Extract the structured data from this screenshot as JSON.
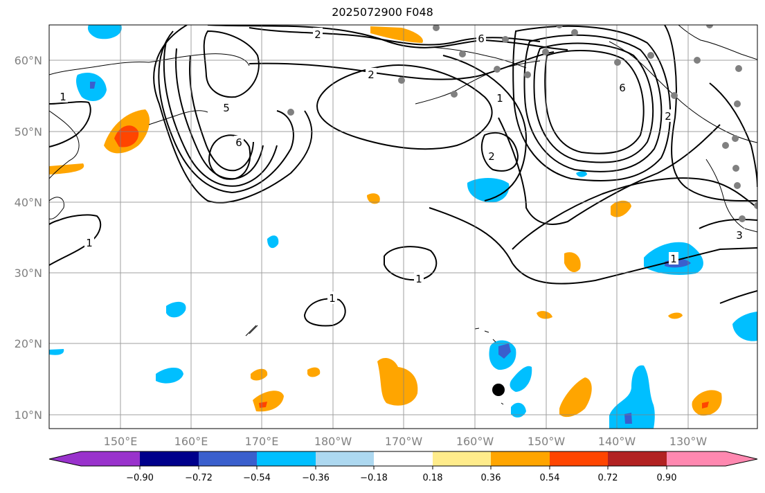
{
  "map": {
    "title": "2025072900 F048",
    "lat_labels": [
      "60°N",
      "50°N",
      "40°N",
      "30°N",
      "20°N",
      "10°N"
    ],
    "lon_labels": [
      "150°E",
      "160°E",
      "170°E",
      "180°W",
      "170°W",
      "160°W",
      "150°W",
      "140°W",
      "130°W"
    ],
    "contour_labels": [
      "2",
      "6",
      "5",
      "2",
      "2",
      "1",
      "6",
      "1",
      "1",
      "1",
      "1",
      "6",
      "3",
      "1",
      "2"
    ],
    "colorbar": {
      "tick_labels": [
        "−0.90",
        "−0.72",
        "−0.54",
        "−0.36",
        "−0.18",
        "0.18",
        "0.36",
        "0.54",
        "0.72",
        "0.90"
      ],
      "colors": [
        "#9932cc",
        "#00008b",
        "#3a5fcd",
        "#00bfff",
        "#add8f0",
        "#ffffff",
        "#ffec8b",
        "#ffa500",
        "#ff4500",
        "#b22222",
        "#ff88b0"
      ]
    },
    "colors": {
      "contour": "#000000",
      "grid": "#808080",
      "coast": "#000000",
      "station": "#808080",
      "marker": "#000000"
    }
  }
}
